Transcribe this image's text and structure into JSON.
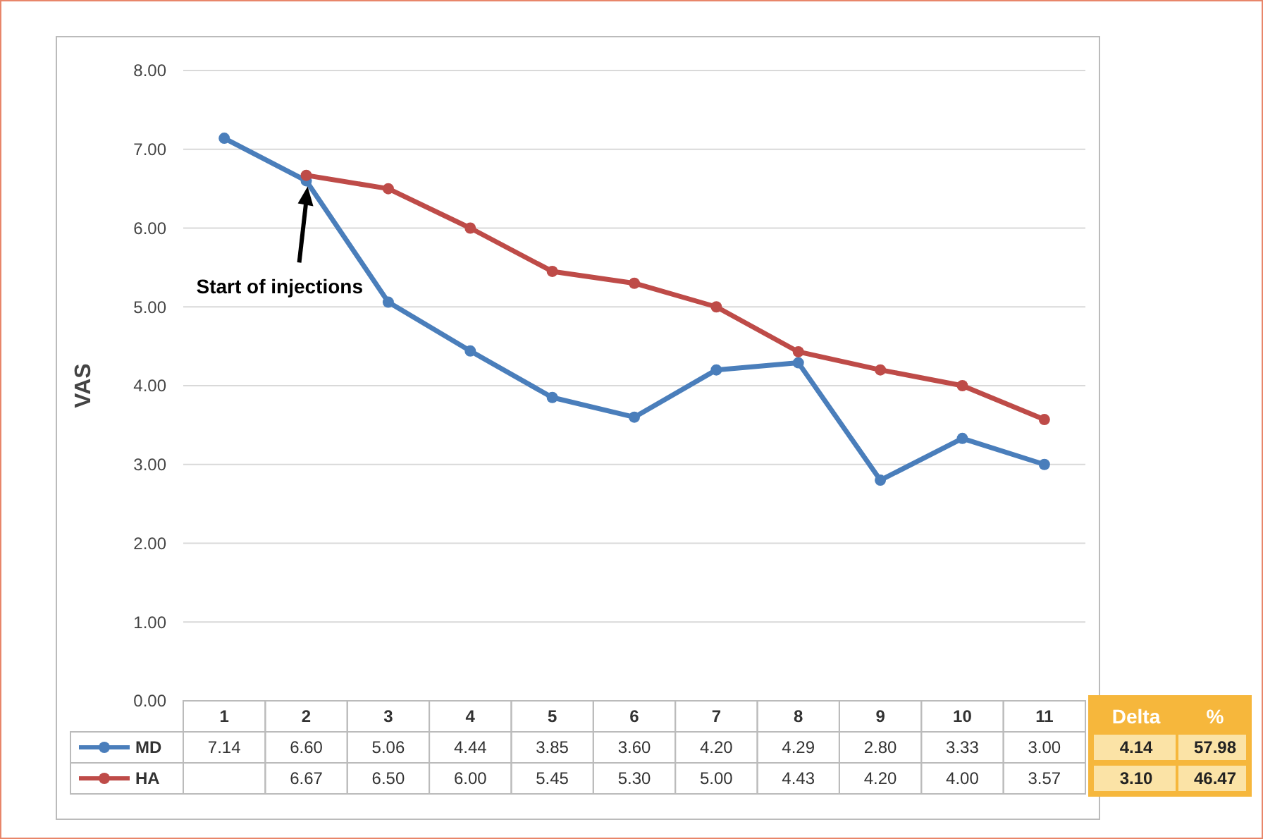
{
  "chart_data": {
    "type": "line",
    "ylabel": "VAS",
    "categories": [
      "1",
      "2",
      "3",
      "4",
      "5",
      "6",
      "7",
      "8",
      "9",
      "10",
      "11"
    ],
    "series": [
      {
        "name": "MD",
        "color": "#4a7ebb",
        "values": [
          7.14,
          6.6,
          5.06,
          4.44,
          3.85,
          3.6,
          4.2,
          4.29,
          2.8,
          3.33,
          3.0
        ],
        "value_labels": [
          "7.14",
          "6.60",
          "5.06",
          "4.44",
          "3.85",
          "3.60",
          "4.20",
          "4.29",
          "2.80",
          "3.33",
          "3.00"
        ]
      },
      {
        "name": "HA",
        "color": "#be4b48",
        "values": [
          null,
          6.67,
          6.5,
          6.0,
          5.45,
          5.3,
          5.0,
          4.43,
          4.2,
          4.0,
          3.57
        ],
        "value_labels": [
          null,
          "6.67",
          "6.50",
          "6.00",
          "5.45",
          "5.30",
          "5.00",
          "4.43",
          "4.20",
          "4.00",
          "3.57"
        ]
      }
    ],
    "ylim": [
      0,
      8
    ],
    "yticks": [
      {
        "value": 0,
        "label": "0.00"
      },
      {
        "value": 1,
        "label": "1.00"
      },
      {
        "value": 2,
        "label": "2.00"
      },
      {
        "value": 3,
        "label": "3.00"
      },
      {
        "value": 4,
        "label": "4.00"
      },
      {
        "value": 5,
        "label": "5.00"
      },
      {
        "value": 6,
        "label": "6.00"
      },
      {
        "value": 7,
        "label": "7.00"
      },
      {
        "value": 8,
        "label": "8.00"
      }
    ],
    "grid": "y",
    "marker": "circle",
    "line_style": "solid",
    "legend": "bottom left",
    "annotations": [
      "Start of injections",
      "Delta",
      "%",
      "4.14",
      "57.98",
      "3.10",
      "46.47"
    ]
  }
}
